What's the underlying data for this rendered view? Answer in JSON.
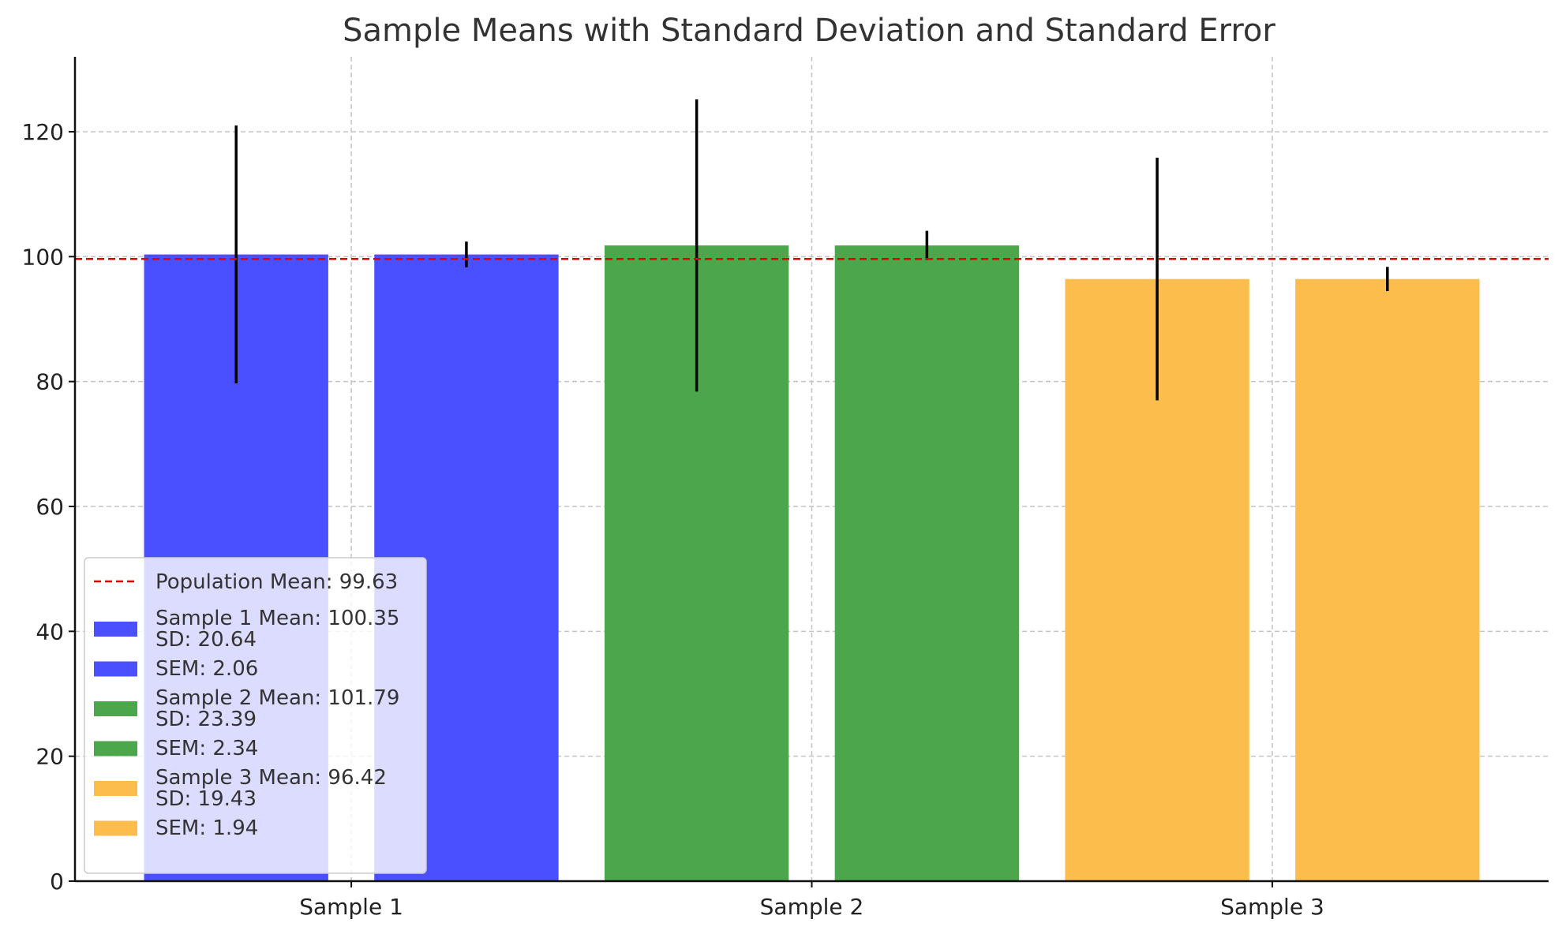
{
  "chart_data": {
    "type": "bar",
    "title": "Sample Means with Standard Deviation and Standard Error",
    "xlabel": "",
    "ylabel": "",
    "categories": [
      "Sample 1",
      "Sample 2",
      "Sample 3"
    ],
    "ylim": [
      0,
      132
    ],
    "yticks": [
      "0",
      "20",
      "40",
      "60",
      "80",
      "100",
      "120"
    ],
    "grid": true,
    "legend_position": "lower-left",
    "population_mean": {
      "value": 99.63,
      "label": "Population Mean: 99.63",
      "color": "#ff0000"
    },
    "series": [
      {
        "category": "Sample 1",
        "kind": "SD",
        "value": 100.35,
        "error": 20.64,
        "color": "#4a4fff",
        "legend_lines": [
          "Sample 1 Mean: 100.35",
          "SD: 20.64"
        ]
      },
      {
        "category": "Sample 1",
        "kind": "SEM",
        "value": 100.35,
        "error": 2.06,
        "color": "#4a4fff",
        "legend_lines": [
          "SEM: 2.06"
        ]
      },
      {
        "category": "Sample 2",
        "kind": "SD",
        "value": 101.79,
        "error": 23.39,
        "color": "#4ca64c",
        "legend_lines": [
          "Sample 2 Mean: 101.79",
          "SD: 23.39"
        ]
      },
      {
        "category": "Sample 2",
        "kind": "SEM",
        "value": 101.79,
        "error": 2.34,
        "color": "#4ca64c",
        "legend_lines": [
          "SEM: 2.34"
        ]
      },
      {
        "category": "Sample 3",
        "kind": "SD",
        "value": 96.42,
        "error": 19.43,
        "color": "#fdbd4d",
        "legend_lines": [
          "Sample 3 Mean: 96.42",
          "SD: 19.43"
        ]
      },
      {
        "category": "Sample 3",
        "kind": "SEM",
        "value": 96.42,
        "error": 1.94,
        "color": "#fdbd4d",
        "legend_lines": [
          "SEM: 1.94"
        ]
      }
    ]
  }
}
